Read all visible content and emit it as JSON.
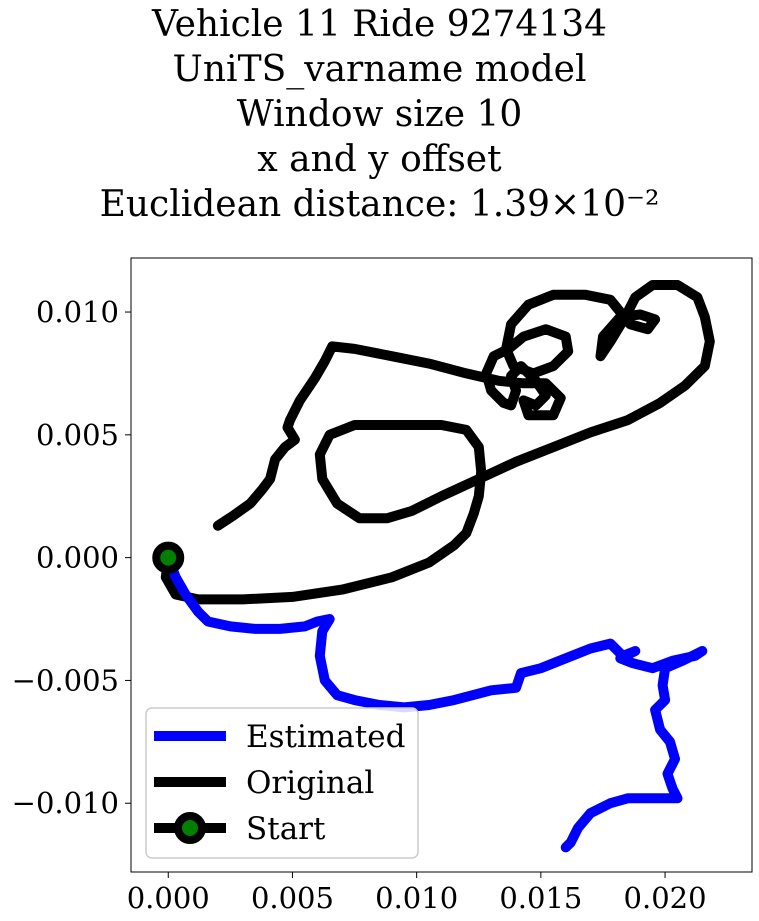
{
  "title_lines": [
    "Vehicle 11 Ride 9274134",
    "UniTS_varname model",
    "Window size 10",
    "x and y offset",
    "Euclidean distance: 1.39×10⁻²"
  ],
  "chart_data": {
    "type": "line",
    "title": "Vehicle 11 Ride 9274134 UniTS_varname model Window size 10 x and y offset Euclidean distance: 1.39×10⁻²",
    "xlabel": "",
    "ylabel": "",
    "xlim": [
      -0.0015,
      0.0235
    ],
    "ylim": [
      -0.0128,
      0.0122
    ],
    "grid": false,
    "legend_position": "lower-left",
    "xticks": [
      0.0,
      0.005,
      0.01,
      0.015,
      0.02
    ],
    "xtick_labels": [
      "0.000",
      "0.005",
      "0.010",
      "0.015",
      "0.020"
    ],
    "yticks": [
      -0.01,
      -0.005,
      0.0,
      0.005,
      0.01
    ],
    "ytick_labels": [
      "−0.010",
      "−0.005",
      "0.000",
      "0.005",
      "0.010"
    ],
    "series": [
      {
        "name": "Estimated",
        "color": "#0000ff",
        "points": [
          [
            0.0,
            0.0
          ],
          [
            0.0003,
            -0.0008
          ],
          [
            0.0007,
            -0.0015
          ],
          [
            0.0012,
            -0.0022
          ],
          [
            0.0016,
            -0.0026
          ],
          [
            0.0025,
            -0.0028
          ],
          [
            0.0035,
            -0.0029
          ],
          [
            0.0045,
            -0.0029
          ],
          [
            0.0055,
            -0.0028
          ],
          [
            0.006,
            -0.0026
          ],
          [
            0.0065,
            -0.0025
          ],
          [
            0.0062,
            -0.003
          ],
          [
            0.0061,
            -0.004
          ],
          [
            0.0063,
            -0.005
          ],
          [
            0.0068,
            -0.0056
          ],
          [
            0.0075,
            -0.0058
          ],
          [
            0.0085,
            -0.006
          ],
          [
            0.0095,
            -0.0061
          ],
          [
            0.0105,
            -0.006
          ],
          [
            0.0115,
            -0.0058
          ],
          [
            0.013,
            -0.0054
          ],
          [
            0.014,
            -0.0053
          ],
          [
            0.0142,
            -0.0047
          ],
          [
            0.015,
            -0.0045
          ],
          [
            0.016,
            -0.0041
          ],
          [
            0.017,
            -0.0037
          ],
          [
            0.0178,
            -0.0035
          ],
          [
            0.0183,
            -0.004
          ],
          [
            0.0188,
            -0.0038
          ],
          [
            0.0182,
            -0.0041
          ],
          [
            0.0187,
            -0.0043
          ],
          [
            0.0195,
            -0.0045
          ],
          [
            0.0203,
            -0.0042
          ],
          [
            0.0212,
            -0.004
          ],
          [
            0.0215,
            -0.0038
          ],
          [
            0.0207,
            -0.0042
          ],
          [
            0.02,
            -0.0045
          ],
          [
            0.0199,
            -0.0052
          ],
          [
            0.02,
            -0.0058
          ],
          [
            0.0196,
            -0.0062
          ],
          [
            0.0198,
            -0.007
          ],
          [
            0.0202,
            -0.0075
          ],
          [
            0.0204,
            -0.0082
          ],
          [
            0.0201,
            -0.0088
          ],
          [
            0.0203,
            -0.0094
          ],
          [
            0.0205,
            -0.0098
          ],
          [
            0.0195,
            -0.0098
          ],
          [
            0.0185,
            -0.0098
          ],
          [
            0.0178,
            -0.01
          ],
          [
            0.017,
            -0.0104
          ],
          [
            0.0165,
            -0.011
          ],
          [
            0.0162,
            -0.0116
          ],
          [
            0.016,
            -0.0118
          ]
        ]
      },
      {
        "name": "Original",
        "color": "#000000",
        "points": [
          [
            0.0,
            0.0
          ],
          [
            -0.0001,
            -0.0008
          ],
          [
            0.0003,
            -0.0015
          ],
          [
            0.0012,
            -0.0017
          ],
          [
            0.003,
            -0.0017
          ],
          [
            0.005,
            -0.0016
          ],
          [
            0.007,
            -0.0013
          ],
          [
            0.009,
            -0.0008
          ],
          [
            0.0105,
            -0.0002
          ],
          [
            0.0115,
            0.0005
          ],
          [
            0.012,
            0.001
          ],
          [
            0.0123,
            0.0018
          ],
          [
            0.0125,
            0.0025
          ],
          [
            0.0126,
            0.0035
          ],
          [
            0.0125,
            0.0045
          ],
          [
            0.012,
            0.0052
          ],
          [
            0.011,
            0.0054
          ],
          [
            0.0095,
            0.0054
          ],
          [
            0.0075,
            0.0054
          ],
          [
            0.0065,
            0.005
          ],
          [
            0.0061,
            0.0042
          ],
          [
            0.0062,
            0.0032
          ],
          [
            0.0068,
            0.0022
          ],
          [
            0.0077,
            0.0016
          ],
          [
            0.0088,
            0.0016
          ],
          [
            0.0098,
            0.0019
          ],
          [
            0.011,
            0.0025
          ],
          [
            0.0125,
            0.0032
          ],
          [
            0.014,
            0.0039
          ],
          [
            0.0155,
            0.0045
          ],
          [
            0.017,
            0.0051
          ],
          [
            0.0185,
            0.0056
          ],
          [
            0.0198,
            0.0063
          ],
          [
            0.0208,
            0.007
          ],
          [
            0.0216,
            0.0078
          ],
          [
            0.0218,
            0.0088
          ],
          [
            0.0216,
            0.0098
          ],
          [
            0.0213,
            0.0106
          ],
          [
            0.0205,
            0.0111
          ],
          [
            0.0195,
            0.0111
          ],
          [
            0.0188,
            0.0106
          ],
          [
            0.0184,
            0.0098
          ],
          [
            0.0178,
            0.0088
          ],
          [
            0.0174,
            0.0082
          ],
          [
            0.0175,
            0.009
          ],
          [
            0.0182,
            0.0098
          ],
          [
            0.019,
            0.0099
          ],
          [
            0.0196,
            0.0097
          ],
          [
            0.0193,
            0.0093
          ],
          [
            0.0186,
            0.0095
          ],
          [
            0.0178,
            0.0105
          ],
          [
            0.0168,
            0.0107
          ],
          [
            0.0155,
            0.0107
          ],
          [
            0.0145,
            0.0103
          ],
          [
            0.0138,
            0.0095
          ],
          [
            0.0136,
            0.0085
          ],
          [
            0.0139,
            0.0078
          ],
          [
            0.0147,
            0.0075
          ],
          [
            0.0155,
            0.0078
          ],
          [
            0.0161,
            0.0084
          ],
          [
            0.016,
            0.009
          ],
          [
            0.0152,
            0.0093
          ],
          [
            0.0143,
            0.009
          ],
          [
            0.0137,
            0.0085
          ],
          [
            0.0131,
            0.0082
          ],
          [
            0.0128,
            0.0075
          ],
          [
            0.013,
            0.0068
          ],
          [
            0.0135,
            0.0063
          ],
          [
            0.0138,
            0.0062
          ],
          [
            0.014,
            0.0068
          ],
          [
            0.0138,
            0.0074
          ],
          [
            0.0142,
            0.0078
          ],
          [
            0.0148,
            0.0072
          ],
          [
            0.0152,
            0.0066
          ],
          [
            0.0148,
            0.0062
          ],
          [
            0.0143,
            0.0064
          ],
          [
            0.0145,
            0.0058
          ],
          [
            0.0155,
            0.0058
          ],
          [
            0.0158,
            0.0065
          ],
          [
            0.0152,
            0.0071
          ],
          [
            0.0143,
            0.0071
          ],
          [
            0.0133,
            0.0072
          ],
          [
            0.012,
            0.0075
          ],
          [
            0.0105,
            0.0079
          ],
          [
            0.009,
            0.0082
          ],
          [
            0.0075,
            0.0085
          ],
          [
            0.0066,
            0.0086
          ],
          [
            0.0063,
            0.008
          ],
          [
            0.0059,
            0.0073
          ],
          [
            0.0053,
            0.0064
          ],
          [
            0.0049,
            0.0056
          ],
          [
            0.0048,
            0.0053
          ],
          [
            0.0051,
            0.0048
          ],
          [
            0.0047,
            0.0045
          ],
          [
            0.0043,
            0.004
          ],
          [
            0.0041,
            0.0032
          ],
          [
            0.0038,
            0.0028
          ],
          [
            0.0033,
            0.0022
          ],
          [
            0.0026,
            0.0017
          ],
          [
            0.002,
            0.0013
          ]
        ]
      }
    ],
    "start_marker": {
      "name": "Start",
      "point": [
        0.0,
        0.0
      ],
      "edge_color": "#000000",
      "face_color": "#008000"
    }
  }
}
